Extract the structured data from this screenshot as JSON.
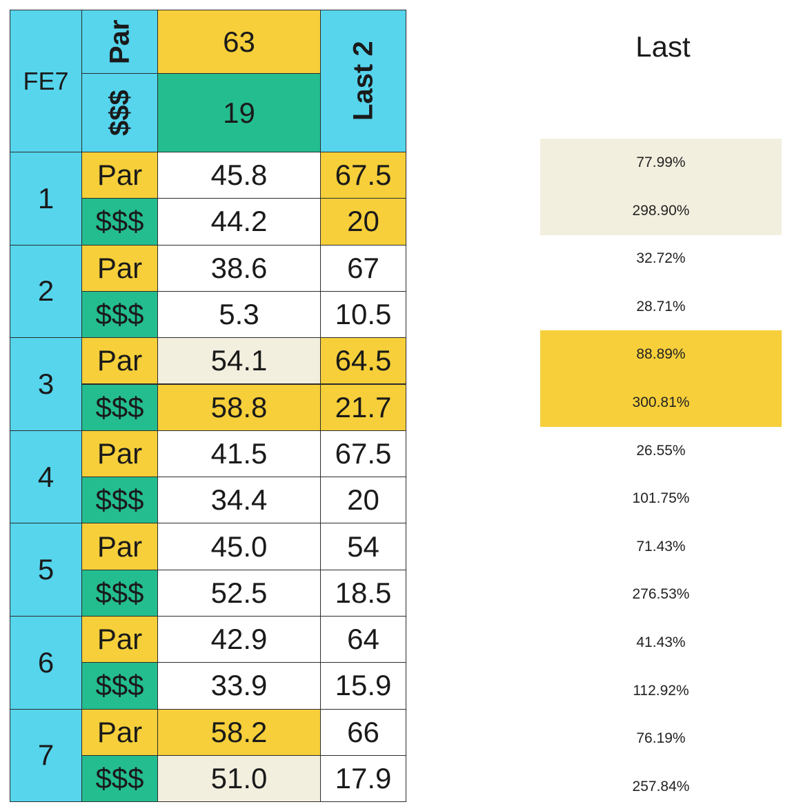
{
  "colors": {
    "header_blue": "#56d5ed",
    "par_yellow": "#f6cf3a",
    "money_green": "#24bd8f",
    "cream": "#f3efdf",
    "white": "#ffffff"
  },
  "table": {
    "corner_label": "FE7",
    "header_par_label": "Par",
    "header_money_label": "$$$",
    "header_par_value": "63",
    "header_money_value": "19",
    "last2_label": "Last 2",
    "groups": [
      {
        "label": "1",
        "par": {
          "label": "Par",
          "value": "45.8",
          "last2": "67.5",
          "value_color": "white",
          "last2_color": "par_yellow"
        },
        "money": {
          "label": "$$$",
          "value": "44.2",
          "last2": "20",
          "value_color": "white",
          "last2_color": "par_yellow"
        }
      },
      {
        "label": "2",
        "par": {
          "label": "Par",
          "value": "38.6",
          "last2": "67",
          "value_color": "white",
          "last2_color": "white"
        },
        "money": {
          "label": "$$$",
          "value": "5.3",
          "last2": "10.5",
          "value_color": "white",
          "last2_color": "white"
        }
      },
      {
        "label": "3",
        "par": {
          "label": "Par",
          "value": "54.1",
          "last2": "64.5",
          "value_color": "cream",
          "last2_color": "par_yellow"
        },
        "money": {
          "label": "$$$",
          "value": "58.8",
          "last2": "21.7",
          "value_color": "par_yellow",
          "last2_color": "par_yellow"
        }
      },
      {
        "label": "4",
        "par": {
          "label": "Par",
          "value": "41.5",
          "last2": "67.5",
          "value_color": "white",
          "last2_color": "white"
        },
        "money": {
          "label": "$$$",
          "value": "34.4",
          "last2": "20",
          "value_color": "white",
          "last2_color": "white"
        }
      },
      {
        "label": "5",
        "par": {
          "label": "Par",
          "value": "45.0",
          "last2": "54",
          "value_color": "white",
          "last2_color": "white"
        },
        "money": {
          "label": "$$$",
          "value": "52.5",
          "last2": "18.5",
          "value_color": "white",
          "last2_color": "white"
        }
      },
      {
        "label": "6",
        "par": {
          "label": "Par",
          "value": "42.9",
          "last2": "64",
          "value_color": "white",
          "last2_color": "white"
        },
        "money": {
          "label": "$$$",
          "value": "33.9",
          "last2": "15.9",
          "value_color": "white",
          "last2_color": "white"
        }
      },
      {
        "label": "7",
        "par": {
          "label": "Par",
          "value": "58.2",
          "last2": "66",
          "value_color": "par_yellow",
          "last2_color": "white"
        },
        "money": {
          "label": "$$$",
          "value": "51.0",
          "last2": "17.9",
          "value_color": "cream",
          "last2_color": "white"
        }
      }
    ]
  },
  "side": {
    "title": "Last",
    "bands": [
      {
        "color": "cream",
        "from_row": 0,
        "to_row": 1
      },
      {
        "color": "par_yellow",
        "from_row": 4,
        "to_row": 5
      }
    ],
    "values": [
      "77.99%",
      "298.90%",
      "32.72%",
      "28.71%",
      "88.89%",
      "300.81%",
      "26.55%",
      "101.75%",
      "71.43%",
      "276.53%",
      "41.43%",
      "112.92%",
      "76.19%",
      "257.84%"
    ]
  }
}
